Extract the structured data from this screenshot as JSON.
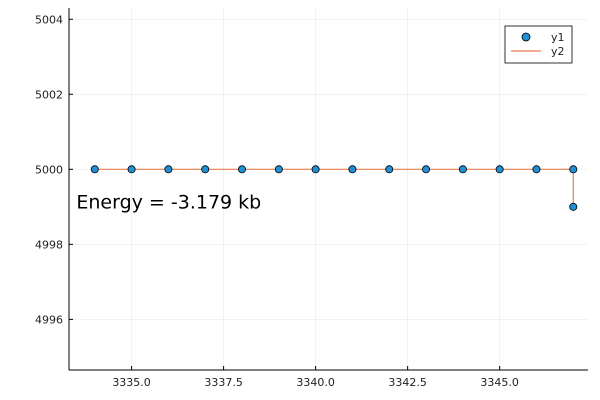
{
  "chart_data": {
    "type": "scatter",
    "xlim": [
      3333.3,
      3347.4
    ],
    "ylim": [
      4994.65,
      5004.3
    ],
    "xticks": [
      3335.0,
      3337.5,
      3340.0,
      3342.5,
      3345.0
    ],
    "xtick_labels": [
      "3335.0",
      "3337.5",
      "3340.0",
      "3342.5",
      "3345.0"
    ],
    "yticks": [
      4996,
      4998,
      5000,
      5002,
      5004
    ],
    "ytick_labels": [
      "4996",
      "4998",
      "5000",
      "5002",
      "5004"
    ],
    "grid": true,
    "legend_position": "top-right",
    "series": [
      {
        "name": "y1",
        "kind": "scatter",
        "color": "#1f8fd6",
        "x": [
          3334,
          3335,
          3336,
          3337,
          3338,
          3339,
          3340,
          3341,
          3342,
          3343,
          3344,
          3345,
          3346,
          3347,
          3347
        ],
        "y": [
          5000,
          5000,
          5000,
          5000,
          5000,
          5000,
          5000,
          5000,
          5000,
          5000,
          5000,
          5000,
          5000,
          5000,
          4999
        ]
      },
      {
        "name": "y2",
        "kind": "line",
        "color": "#e97d4f",
        "x": [
          3334,
          3335,
          3336,
          3337,
          3338,
          3339,
          3340,
          3341,
          3342,
          3343,
          3344,
          3345,
          3346,
          3347,
          3347
        ],
        "y": [
          5000,
          5000,
          5000,
          5000,
          5000,
          5000,
          5000,
          5000,
          5000,
          5000,
          5000,
          5000,
          5000,
          5000,
          4999
        ]
      }
    ],
    "annotation": {
      "text": "Energy = -3.179 kb",
      "x": 3333.5,
      "y": 4998.95
    }
  }
}
